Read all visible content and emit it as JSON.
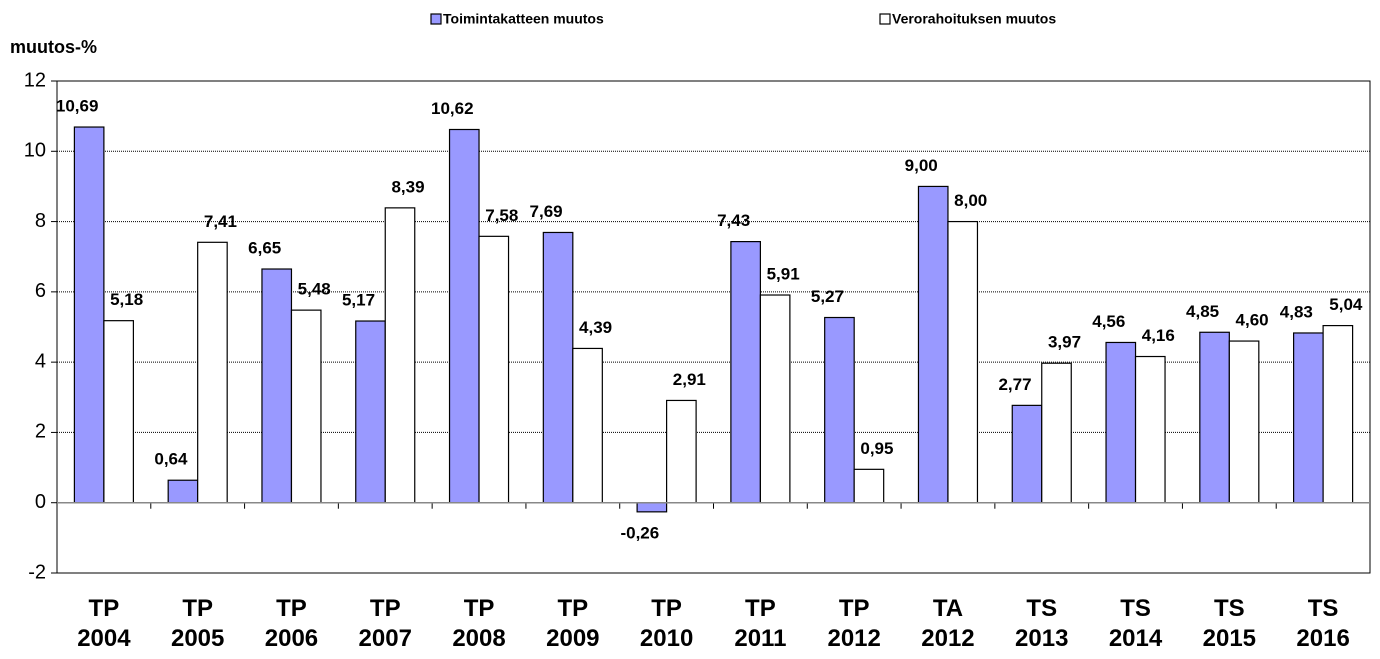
{
  "chart_data": {
    "type": "bar",
    "y_label": "muutos-%",
    "categories": [
      "TP 2004",
      "TP 2005",
      "TP 2006",
      "TP 2007",
      "TP 2008",
      "TP 2009",
      "TP 2010",
      "TP 2011",
      "TP 2012",
      "TA 2012",
      "TS 2013",
      "TS 2014",
      "TS 2015",
      "TS 2016"
    ],
    "series": [
      {
        "name": "Toimintakatteen muutos",
        "color": "#9999ff",
        "values": [
          10.69,
          0.64,
          6.65,
          5.17,
          10.62,
          7.69,
          -0.26,
          7.43,
          5.27,
          9.0,
          2.77,
          4.56,
          4.85,
          4.83
        ],
        "value_labels": [
          "10,69",
          "0,64",
          "6,65",
          "5,17",
          "10,62",
          "7,69",
          "-0,26",
          "7,43",
          "5,27",
          "9,00",
          "2,77",
          "4,56",
          "4,85",
          "4,83"
        ]
      },
      {
        "name": "Verorahoituksen muutos",
        "color": "#ffffff",
        "values": [
          5.18,
          7.41,
          5.48,
          8.39,
          7.58,
          4.39,
          2.91,
          5.91,
          0.95,
          8.0,
          3.97,
          4.16,
          4.6,
          5.04
        ],
        "value_labels": [
          "5,18",
          "7,41",
          "5,48",
          "8,39",
          "7,58",
          "4,39",
          "2,91",
          "5,91",
          "0,95",
          "8,00",
          "3,97",
          "4,16",
          "4,60",
          "5,04"
        ]
      }
    ],
    "ylim": [
      -2,
      12
    ],
    "yticks": [
      -2,
      0,
      2,
      4,
      6,
      8,
      10,
      12
    ],
    "grid": true,
    "legend": "top"
  }
}
